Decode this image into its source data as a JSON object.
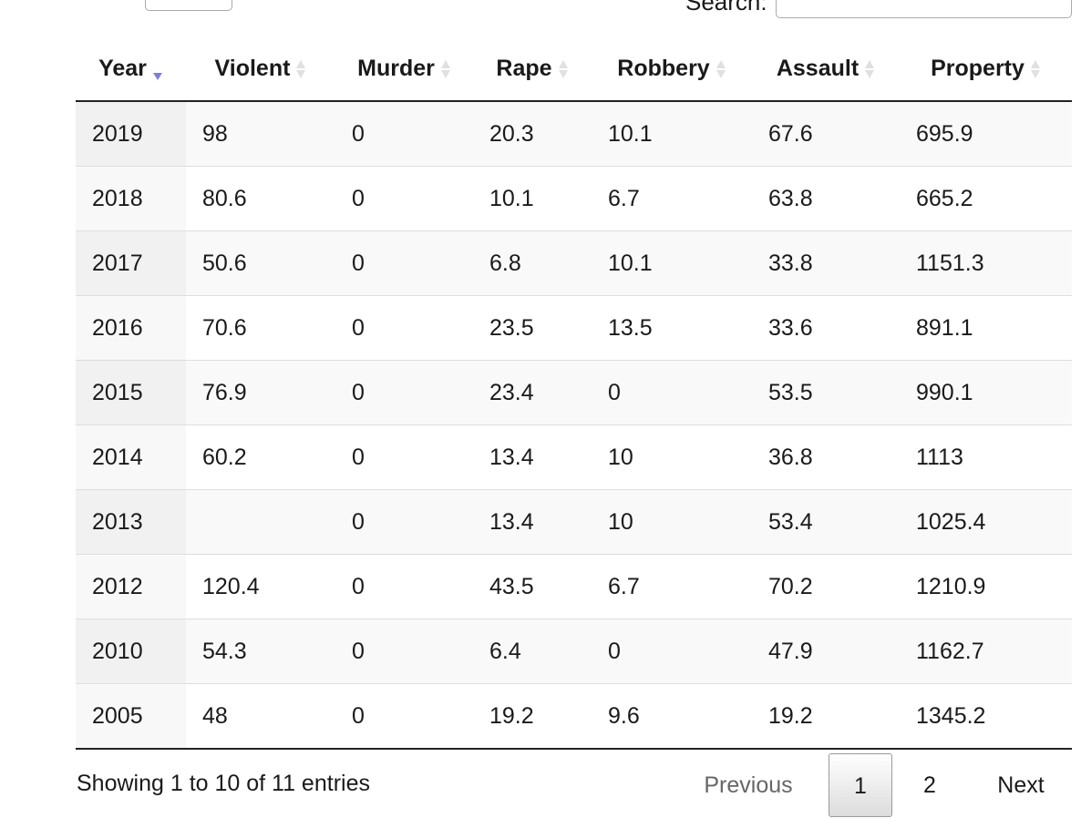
{
  "search": {
    "label": "Search:",
    "value": ""
  },
  "table": {
    "columns": [
      "Year",
      "Violent",
      "Murder",
      "Rape",
      "Robbery",
      "Assault",
      "Property"
    ],
    "sorted_column": "Year",
    "sort_direction": "descending",
    "rows": [
      [
        "2019",
        "98",
        "0",
        "20.3",
        "10.1",
        "67.6",
        "695.9"
      ],
      [
        "2018",
        "80.6",
        "0",
        "10.1",
        "6.7",
        "63.8",
        "665.2"
      ],
      [
        "2017",
        "50.6",
        "0",
        "6.8",
        "10.1",
        "33.8",
        "1151.3"
      ],
      [
        "2016",
        "70.6",
        "0",
        "23.5",
        "13.5",
        "33.6",
        "891.1"
      ],
      [
        "2015",
        "76.9",
        "0",
        "23.4",
        "0",
        "53.5",
        "990.1"
      ],
      [
        "2014",
        "60.2",
        "0",
        "13.4",
        "10",
        "36.8",
        "1113"
      ],
      [
        "2013",
        "",
        "0",
        "13.4",
        "10",
        "53.4",
        "1025.4"
      ],
      [
        "2012",
        "120.4",
        "0",
        "43.5",
        "6.7",
        "70.2",
        "1210.9"
      ],
      [
        "2010",
        "54.3",
        "0",
        "6.4",
        "0",
        "47.9",
        "1162.7"
      ],
      [
        "2005",
        "48",
        "0",
        "19.2",
        "9.6",
        "19.2",
        "1345.2"
      ]
    ]
  },
  "info": "Showing 1 to 10 of 11 entries",
  "pagination": {
    "previous": "Previous",
    "pages": [
      "1",
      "2"
    ],
    "current_page": "1",
    "next": "Next"
  },
  "colors": {
    "sort_active": "#7b80d6",
    "sort_inactive": "#e0e0e0",
    "header_rule": "#222222"
  }
}
